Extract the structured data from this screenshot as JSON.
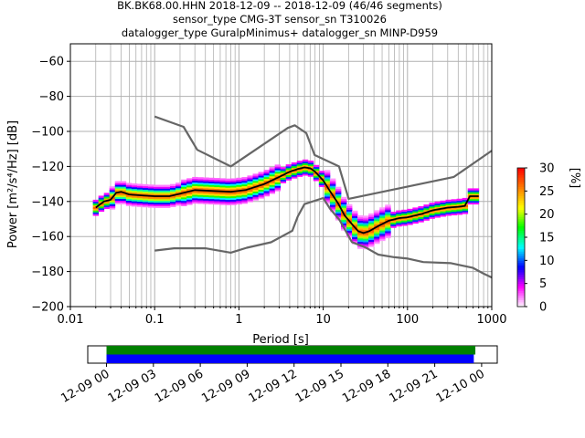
{
  "title_lines": [
    "BK.BK68.00.HHN   2018-12-09 -- 2018-12-09  (46/46 segments)",
    "sensor_type CMG-3T sensor_sn T310026",
    "datalogger_type GuralpMinimus+ datalogger_sn MINP-D959"
  ],
  "chart_data": {
    "type": "heatmap",
    "xlabel": "Period [s]",
    "ylabel": "Power [m²/s⁴/Hz] [dB]",
    "xscale": "log",
    "xlim": [
      0.01,
      1000
    ],
    "ylim": [
      -200,
      -50
    ],
    "x_ticks": [
      0.01,
      0.1,
      1,
      10,
      100,
      1000
    ],
    "x_tick_labels": [
      "0.01",
      "0.1",
      "1",
      "10",
      "100",
      "1000"
    ],
    "y_ticks": [
      -200,
      -180,
      -160,
      -140,
      -120,
      -100,
      -80,
      -60
    ],
    "grid": true,
    "noise_model_high": [
      [
        0.1,
        -91.5
      ],
      [
        0.22,
        -97.4
      ],
      [
        0.32,
        -110.5
      ],
      [
        0.8,
        -120
      ],
      [
        3.8,
        -98
      ],
      [
        4.6,
        -96.5
      ],
      [
        6.3,
        -101
      ],
      [
        7.9,
        -113.5
      ],
      [
        15.4,
        -120
      ],
      [
        20,
        -138.5
      ],
      [
        354.8,
        -126
      ],
      [
        1000,
        -111
      ]
    ],
    "noise_model_low": [
      [
        0.1,
        -168
      ],
      [
        0.17,
        -166.7
      ],
      [
        0.4,
        -166.7
      ],
      [
        0.8,
        -169.2
      ],
      [
        1.24,
        -166.4
      ],
      [
        2.4,
        -163.3
      ],
      [
        4.3,
        -156.7
      ],
      [
        5,
        -148.5
      ],
      [
        6,
        -141.5
      ],
      [
        10,
        -138
      ],
      [
        12,
        -144
      ],
      [
        15.6,
        -150.5
      ],
      [
        21.9,
        -163.2
      ],
      [
        31.6,
        -166.2
      ],
      [
        45,
        -170.3
      ],
      [
        70,
        -171.8
      ],
      [
        101,
        -172.6
      ],
      [
        154,
        -174.6
      ],
      [
        328,
        -175.2
      ],
      [
        600,
        -177.9
      ],
      [
        800,
        -181.2
      ],
      [
        1000,
        -183.4
      ]
    ],
    "mode_curve": [
      [
        0.02,
        -143.5
      ],
      [
        0.025,
        -140
      ],
      [
        0.03,
        -139
      ],
      [
        0.035,
        -135
      ],
      [
        0.04,
        -134.5
      ],
      [
        0.05,
        -136
      ],
      [
        0.07,
        -136.5
      ],
      [
        0.1,
        -137
      ],
      [
        0.15,
        -137
      ],
      [
        0.2,
        -135.5
      ],
      [
        0.3,
        -133.5
      ],
      [
        0.5,
        -134
      ],
      [
        0.8,
        -134.5
      ],
      [
        1.2,
        -133.5
      ],
      [
        2,
        -130
      ],
      [
        3,
        -126
      ],
      [
        4,
        -123
      ],
      [
        5,
        -121.5
      ],
      [
        6,
        -120.5
      ],
      [
        7,
        -121
      ],
      [
        8,
        -123
      ],
      [
        10,
        -128
      ],
      [
        12,
        -134
      ],
      [
        15,
        -141
      ],
      [
        18,
        -148
      ],
      [
        22,
        -153
      ],
      [
        26,
        -157
      ],
      [
        30,
        -158
      ],
      [
        35,
        -157
      ],
      [
        45,
        -154
      ],
      [
        60,
        -151
      ],
      [
        80,
        -149.5
      ],
      [
        100,
        -149
      ],
      [
        150,
        -147
      ],
      [
        200,
        -145
      ],
      [
        300,
        -143.5
      ],
      [
        400,
        -143
      ],
      [
        480,
        -142.5
      ],
      [
        550,
        -137
      ],
      [
        700,
        -137
      ]
    ],
    "colorbar": {
      "label": "[%]",
      "range": [
        0,
        30
      ],
      "ticks": [
        0,
        5,
        10,
        15,
        20,
        25,
        30
      ],
      "colormap": [
        "#ffffff",
        "#ff00ff",
        "#0000ff",
        "#00ffff",
        "#00ff00",
        "#ffff00",
        "#ff7f00",
        "#ff0000"
      ]
    },
    "timeline": {
      "tick_labels": [
        "12-09 00",
        "12-09 03",
        "12-09 06",
        "12-09 09",
        "12-09 12",
        "12-09 15",
        "12-09 18",
        "12-09 21",
        "12-10 00"
      ],
      "bars": [
        {
          "color": "#008000",
          "start_hour": 0,
          "end_hour": 23.6
        },
        {
          "color": "#0000ff",
          "start_hour": 0,
          "end_hour": 23.5
        }
      ],
      "axis_hours": [
        -1.2,
        25
      ]
    }
  }
}
